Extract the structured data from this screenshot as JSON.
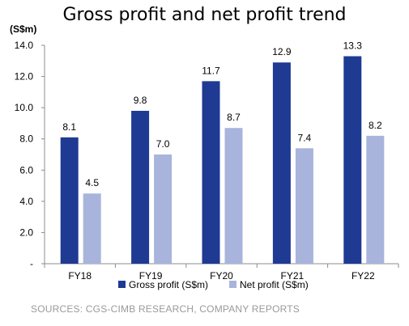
{
  "chart_data": {
    "type": "bar",
    "title": "Gross profit and net profit trend",
    "ylabel": "(S$m)",
    "categories": [
      "FY18",
      "FY19",
      "FY20",
      "FY21",
      "FY22"
    ],
    "series": [
      {
        "name": "Gross profit (S$m)",
        "values": [
          8.1,
          9.8,
          11.7,
          12.9,
          13.3
        ],
        "labels": [
          "8.1",
          "9.8",
          "11.7",
          "12.9",
          "13.3"
        ],
        "color": "#1f3a93"
      },
      {
        "name": "Net profit (S$m)",
        "values": [
          4.5,
          7.0,
          8.7,
          7.4,
          8.2
        ],
        "labels": [
          "4.5",
          "7.0",
          "8.7",
          "7.4",
          "8.2"
        ],
        "color": "#a8b4dc"
      }
    ],
    "ylim": [
      0,
      14
    ],
    "yticks": [
      0,
      2,
      4,
      6,
      8,
      10,
      12,
      14
    ],
    "ytick_labels": [
      "-",
      "2.0",
      "4.0",
      "6.0",
      "8.0",
      "10.0",
      "12.0",
      "14.0"
    ],
    "grid": false,
    "legend": "bottom"
  },
  "source": "SOURCES: CGS-CIMB RESEARCH, COMPANY REPORTS"
}
